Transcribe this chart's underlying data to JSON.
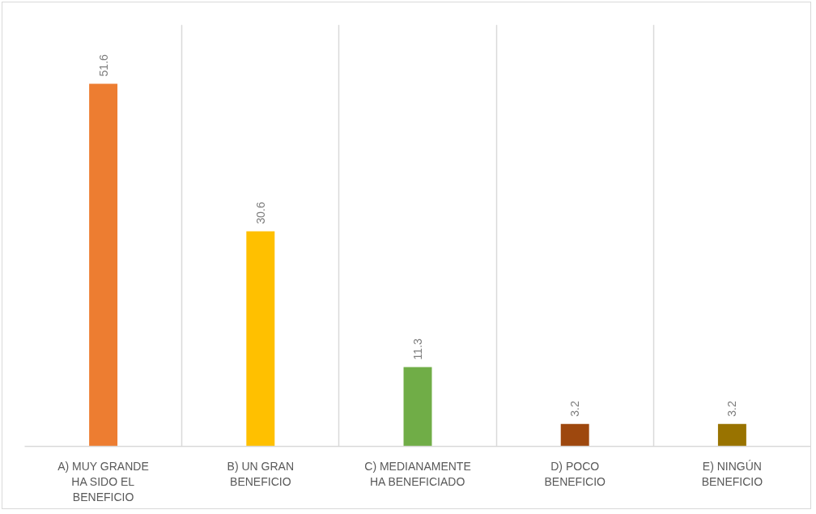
{
  "chart_data": {
    "type": "bar",
    "categories": [
      "A) MUY GRANDE HA SIDO EL BENEFICIO",
      "B) UN GRAN BENEFICIO",
      "C) MEDIANAMENTE HA BENEFICIADO",
      "D) POCO BENEFICIO",
      "E) NINGÚN BENEFICIO"
    ],
    "values": [
      51.6,
      30.6,
      11.3,
      3.2,
      3.2
    ],
    "colors": [
      "#ed7d31",
      "#ffc000",
      "#70ad47",
      "#9e480e",
      "#997300"
    ],
    "ylim": [
      0,
      60
    ],
    "tick_labels": "x",
    "grid": "x",
    "data_labels": true
  }
}
